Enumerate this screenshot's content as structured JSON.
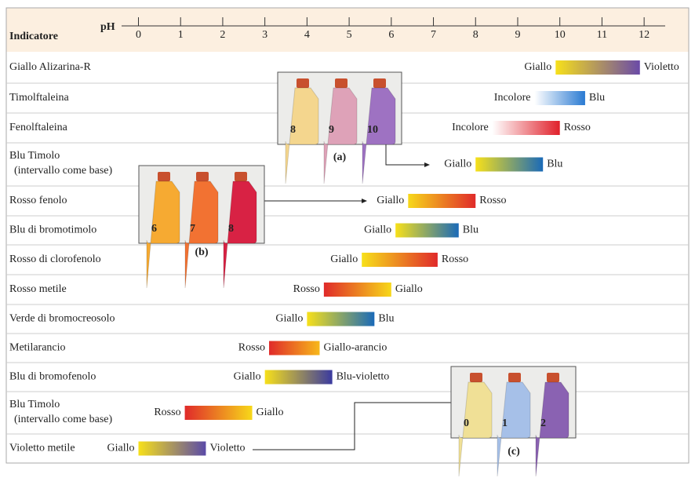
{
  "chart_data": {
    "type": "range",
    "category_label": "Indicatore",
    "x_label": "pH",
    "xlim": [
      -0.4,
      12.5
    ],
    "xticks": [
      0,
      1,
      2,
      3,
      4,
      5,
      6,
      7,
      8,
      9,
      10,
      11,
      12
    ],
    "rows": [
      {
        "name": [
          "Giallo Alizarina-R"
        ],
        "low": 9.9,
        "high": 11.9,
        "low_label": "Giallo",
        "high_label": "Violetto",
        "low_color": "#f7e01a",
        "high_color": "#6a4aa8"
      },
      {
        "name": [
          "Timolftaleina"
        ],
        "low": 9.4,
        "high": 10.6,
        "low_label": "Incolore",
        "high_label": "Blu",
        "low_color": "#ffffff",
        "high_color": "#2a7ad2"
      },
      {
        "name": [
          "Fenolftaleina"
        ],
        "low": 8.4,
        "high": 10.0,
        "low_label": "Incolore",
        "high_label": "Rosso",
        "low_color": "#ffffff",
        "high_color": "#e0202a"
      },
      {
        "name": [
          "Blu Timolo",
          "(intervallo come base)"
        ],
        "low": 8.0,
        "high": 9.6,
        "low_label": "Giallo",
        "high_label": "Blu",
        "low_color": "#f7e01a",
        "high_color": "#1a6ab8"
      },
      {
        "name": [
          "Rosso fenolo"
        ],
        "low": 6.4,
        "high": 8.0,
        "low_label": "Giallo",
        "high_label": "Rosso",
        "low_color": "#f7d81a",
        "high_color": "#e02a2a"
      },
      {
        "name": [
          "Blu di bromotimolo"
        ],
        "low": 6.1,
        "high": 7.6,
        "low_label": "Giallo",
        "high_label": "Blu",
        "low_color": "#f7e01a",
        "high_color": "#1a6ab8"
      },
      {
        "name": [
          "Rosso di clorofenolo"
        ],
        "low": 5.3,
        "high": 7.1,
        "low_label": "Giallo",
        "high_label": "Rosso",
        "low_color": "#f7e01a",
        "high_color": "#e02a2a"
      },
      {
        "name": [
          "Rosso metile"
        ],
        "low": 4.4,
        "high": 6.0,
        "low_label": "Rosso",
        "high_label": "Giallo",
        "low_color": "#e02a2a",
        "high_color": "#f7d81a"
      },
      {
        "name": [
          "Verde di bromocreosolo"
        ],
        "low": 4.0,
        "high": 5.6,
        "low_label": "Giallo",
        "high_label": "Blu",
        "low_color": "#f7e01a",
        "high_color": "#1a6ab8"
      },
      {
        "name": [
          "Metilarancio"
        ],
        "low": 3.1,
        "high": 4.3,
        "low_label": "Rosso",
        "high_label": "Giallo-arancio",
        "low_color": "#e02a2a",
        "high_color": "#f7b81a"
      },
      {
        "name": [
          "Blu di bromofenolo"
        ],
        "low": 3.0,
        "high": 4.6,
        "low_label": "Giallo",
        "high_label": "Blu-violetto",
        "low_color": "#f7e01a",
        "high_color": "#3a3aa0"
      },
      {
        "name": [
          "Blu Timolo",
          "(intervallo come base)"
        ],
        "low": 1.1,
        "high": 2.7,
        "low_label": "Rosso",
        "high_label": "Giallo",
        "low_color": "#e02a2a",
        "high_color": "#f7d81a"
      },
      {
        "name": [
          "Violetto metile"
        ],
        "low": 0.0,
        "high": 1.6,
        "low_label": "Giallo",
        "high_label": "Violetto",
        "low_color": "#f7e01a",
        "high_color": "#5a4aa8"
      }
    ],
    "insets": [
      {
        "caption": "(a)",
        "bottles": [
          {
            "label": "8",
            "color": "#f4d68e"
          },
          {
            "label": "9",
            "color": "#dea2b8"
          },
          {
            "label": "10",
            "color": "#9e72c2"
          }
        ]
      },
      {
        "caption": "(b)",
        "bottles": [
          {
            "label": "6",
            "color": "#f6aa32"
          },
          {
            "label": "7",
            "color": "#f27232"
          },
          {
            "label": "8",
            "color": "#d82244"
          }
        ]
      },
      {
        "caption": "(c)",
        "bottles": [
          {
            "label": "0",
            "color": "#f0e096"
          },
          {
            "label": "1",
            "color": "#a6c0e8"
          },
          {
            "label": "2",
            "color": "#8a62b2"
          }
        ]
      }
    ]
  }
}
